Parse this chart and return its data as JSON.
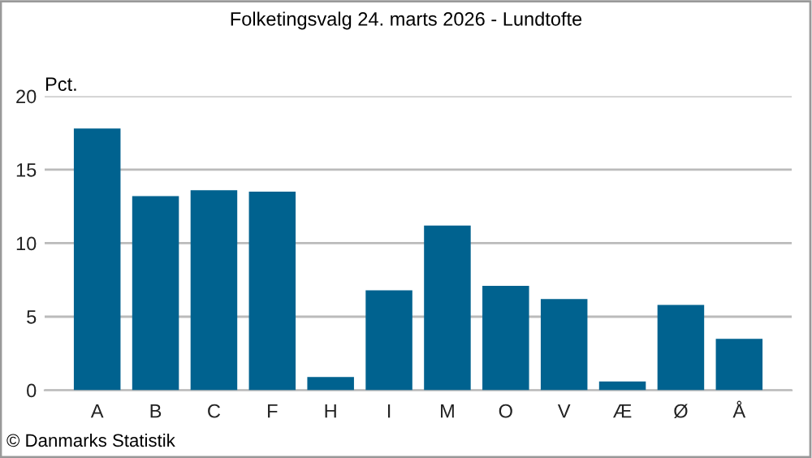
{
  "chart_data": {
    "type": "bar",
    "title": "Folketingsvalg 24. marts 2026 - Lundtofte",
    "ylabel": "Pct.",
    "categories": [
      "A",
      "B",
      "C",
      "F",
      "H",
      "I",
      "M",
      "O",
      "V",
      "Æ",
      "Ø",
      "Å"
    ],
    "values": [
      17.8,
      13.2,
      13.6,
      13.5,
      0.9,
      6.8,
      11.2,
      7.1,
      6.2,
      0.6,
      5.8,
      3.5
    ],
    "color": "#00628f",
    "ylim": [
      0,
      20
    ],
    "yticks": [
      0,
      5,
      10,
      15,
      20
    ],
    "grid": "y",
    "annotations": [
      "© Danmarks Statistik"
    ]
  }
}
